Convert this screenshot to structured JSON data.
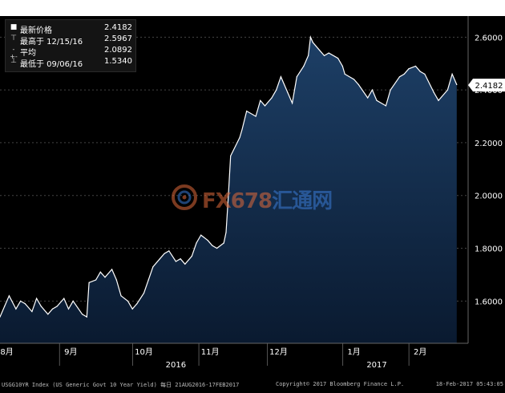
{
  "chart_data": {
    "type": "area",
    "ylim": [
      1.44,
      2.68
    ],
    "x_range": [
      "2016-08-01",
      "2017-02-22"
    ],
    "y_ticks": [
      "2.6000",
      "2.4000",
      "2.2000",
      "2.0000",
      "1.8000",
      "1.6000"
    ],
    "y_tick_values": [
      2.6,
      2.4,
      2.2,
      2.0,
      1.8,
      1.6
    ],
    "x_month_labels": [
      {
        "label": "8月",
        "date": "2016-08-04"
      },
      {
        "label": "9月",
        "date": "2016-09-01"
      },
      {
        "label": "10月",
        "date": "2016-10-03"
      },
      {
        "label": "11月",
        "date": "2016-11-01"
      },
      {
        "label": "12月",
        "date": "2016-12-01"
      },
      {
        "label": "1月",
        "date": "2017-01-03"
      },
      {
        "label": "2月",
        "date": "2017-02-01"
      }
    ],
    "x_year_labels": [
      {
        "label": "2016",
        "date": "2016-10-17"
      },
      {
        "label": "2017",
        "date": "2017-01-13"
      }
    ],
    "last_value_label": "2.4182",
    "last_value": 2.4182,
    "series": [
      {
        "x": [
          "2016-08-01",
          "2016-08-03",
          "2016-08-05",
          "2016-08-08",
          "2016-08-10",
          "2016-08-12",
          "2016-08-15",
          "2016-08-17",
          "2016-08-19",
          "2016-08-22",
          "2016-08-24",
          "2016-08-26",
          "2016-08-29",
          "2016-08-31",
          "2016-09-02",
          "2016-09-06",
          "2016-09-08",
          "2016-09-09",
          "2016-09-12",
          "2016-09-14",
          "2016-09-16",
          "2016-09-19",
          "2016-09-21",
          "2016-09-23",
          "2016-09-26",
          "2016-09-28",
          "2016-09-30",
          "2016-10-03",
          "2016-10-05",
          "2016-10-07",
          "2016-10-10",
          "2016-10-12",
          "2016-10-14",
          "2016-10-17",
          "2016-10-19",
          "2016-10-21",
          "2016-10-24",
          "2016-10-26",
          "2016-10-28",
          "2016-10-31",
          "2016-11-02",
          "2016-11-04",
          "2016-11-07",
          "2016-11-08",
          "2016-11-09",
          "2016-11-10",
          "2016-11-14",
          "2016-11-15",
          "2016-11-17",
          "2016-11-21",
          "2016-11-23",
          "2016-11-25",
          "2016-11-28",
          "2016-11-30",
          "2016-12-02",
          "2016-12-05",
          "2016-12-07",
          "2016-12-09",
          "2016-12-12",
          "2016-12-14",
          "2016-12-15",
          "2016-12-16",
          "2016-12-19",
          "2016-12-21",
          "2016-12-23",
          "2016-12-27",
          "2016-12-29",
          "2016-12-30",
          "2017-01-03",
          "2017-01-05",
          "2017-01-09",
          "2017-01-11",
          "2017-01-13",
          "2017-01-17",
          "2017-01-19",
          "2017-01-23",
          "2017-01-25",
          "2017-01-27",
          "2017-01-30",
          "2017-02-01",
          "2017-02-03",
          "2017-02-07",
          "2017-02-09",
          "2017-02-13",
          "2017-02-15",
          "2017-02-17"
        ],
        "values": [
          1.54,
          1.58,
          1.62,
          1.57,
          1.6,
          1.59,
          1.56,
          1.61,
          1.58,
          1.55,
          1.57,
          1.58,
          1.61,
          1.57,
          1.6,
          1.55,
          1.54,
          1.67,
          1.68,
          1.71,
          1.69,
          1.72,
          1.68,
          1.62,
          1.6,
          1.57,
          1.59,
          1.63,
          1.68,
          1.73,
          1.76,
          1.78,
          1.79,
          1.75,
          1.76,
          1.74,
          1.77,
          1.82,
          1.85,
          1.83,
          1.81,
          1.8,
          1.82,
          1.86,
          2.0,
          2.15,
          2.22,
          2.25,
          2.32,
          2.3,
          2.36,
          2.34,
          2.37,
          2.4,
          2.45,
          2.39,
          2.35,
          2.45,
          2.49,
          2.53,
          2.6,
          2.58,
          2.55,
          2.53,
          2.54,
          2.52,
          2.49,
          2.46,
          2.44,
          2.42,
          2.37,
          2.4,
          2.36,
          2.34,
          2.4,
          2.45,
          2.46,
          2.48,
          2.49,
          2.47,
          2.46,
          2.39,
          2.36,
          2.4,
          2.46,
          2.42
        ]
      }
    ]
  },
  "legend": {
    "items": [
      {
        "symbol": "■",
        "label": "最新价格",
        "value": "2.4182"
      },
      {
        "symbol": "⊤",
        "label": "最高于 12/15/16",
        "value": "2.5967"
      },
      {
        "symbol": "-+-",
        "label": "平均",
        "value": "2.0892"
      },
      {
        "symbol": "⊥",
        "label": "最低于 09/06/16",
        "value": "1.5340"
      }
    ]
  },
  "footer": {
    "left": "USGG10YR Index (US Generic Govt 10 Year Yield)  每日 21AUG2016-17FEB2017",
    "center": "Copyright© 2017 Bloomberg Finance L.P.",
    "right": "18-Feb-2017 05:43:05"
  },
  "watermark": {
    "latin": "FX678",
    "cn": "汇通网"
  },
  "colors": {
    "background": "#000000",
    "area_top": "#1d3f66",
    "area_bottom": "#0a1a30",
    "line": "#ffffff",
    "grid": "#444444",
    "axis_text": "#ffffff",
    "last_value_box": "#ffffff"
  }
}
